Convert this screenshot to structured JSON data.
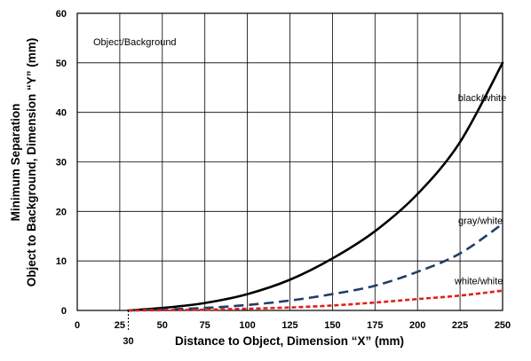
{
  "chart_data": {
    "type": "line",
    "xlabel": "Distance to Object, Dimension “X” (mm)",
    "ylabel_line1": "Minimum Separation",
    "ylabel_line2": "Object to Background, Dimension “Y” (mm)",
    "xlim": [
      0,
      250
    ],
    "ylim": [
      0,
      60
    ],
    "x_ticks": [
      0,
      25,
      50,
      75,
      100,
      125,
      150,
      175,
      200,
      225,
      250
    ],
    "y_ticks": [
      0,
      10,
      20,
      30,
      40,
      50,
      60
    ],
    "grid": true,
    "annotation": "Object/Background",
    "marker_label": "30",
    "marker_x": 30,
    "series": [
      {
        "name": "black/white",
        "color": "#000000",
        "style": "solid",
        "x": [
          30,
          50,
          75,
          100,
          125,
          150,
          175,
          200,
          225,
          250
        ],
        "y": [
          0,
          0.5,
          1.5,
          3.3,
          6.2,
          10.5,
          16,
          23.5,
          34,
          50
        ]
      },
      {
        "name": "gray/white",
        "color": "#1f3e66",
        "style": "dashed",
        "x": [
          30,
          50,
          75,
          100,
          125,
          150,
          175,
          200,
          225,
          250
        ],
        "y": [
          0,
          0.2,
          0.5,
          1.1,
          2,
          3.3,
          5,
          7.8,
          11.5,
          17.5
        ]
      },
      {
        "name": "white/white",
        "color": "#e0201a",
        "style": "dotted",
        "x": [
          30,
          50,
          75,
          100,
          125,
          150,
          175,
          200,
          225,
          250
        ],
        "y": [
          0,
          0.05,
          0.15,
          0.35,
          0.6,
          1,
          1.6,
          2.3,
          3,
          4
        ]
      }
    ]
  }
}
